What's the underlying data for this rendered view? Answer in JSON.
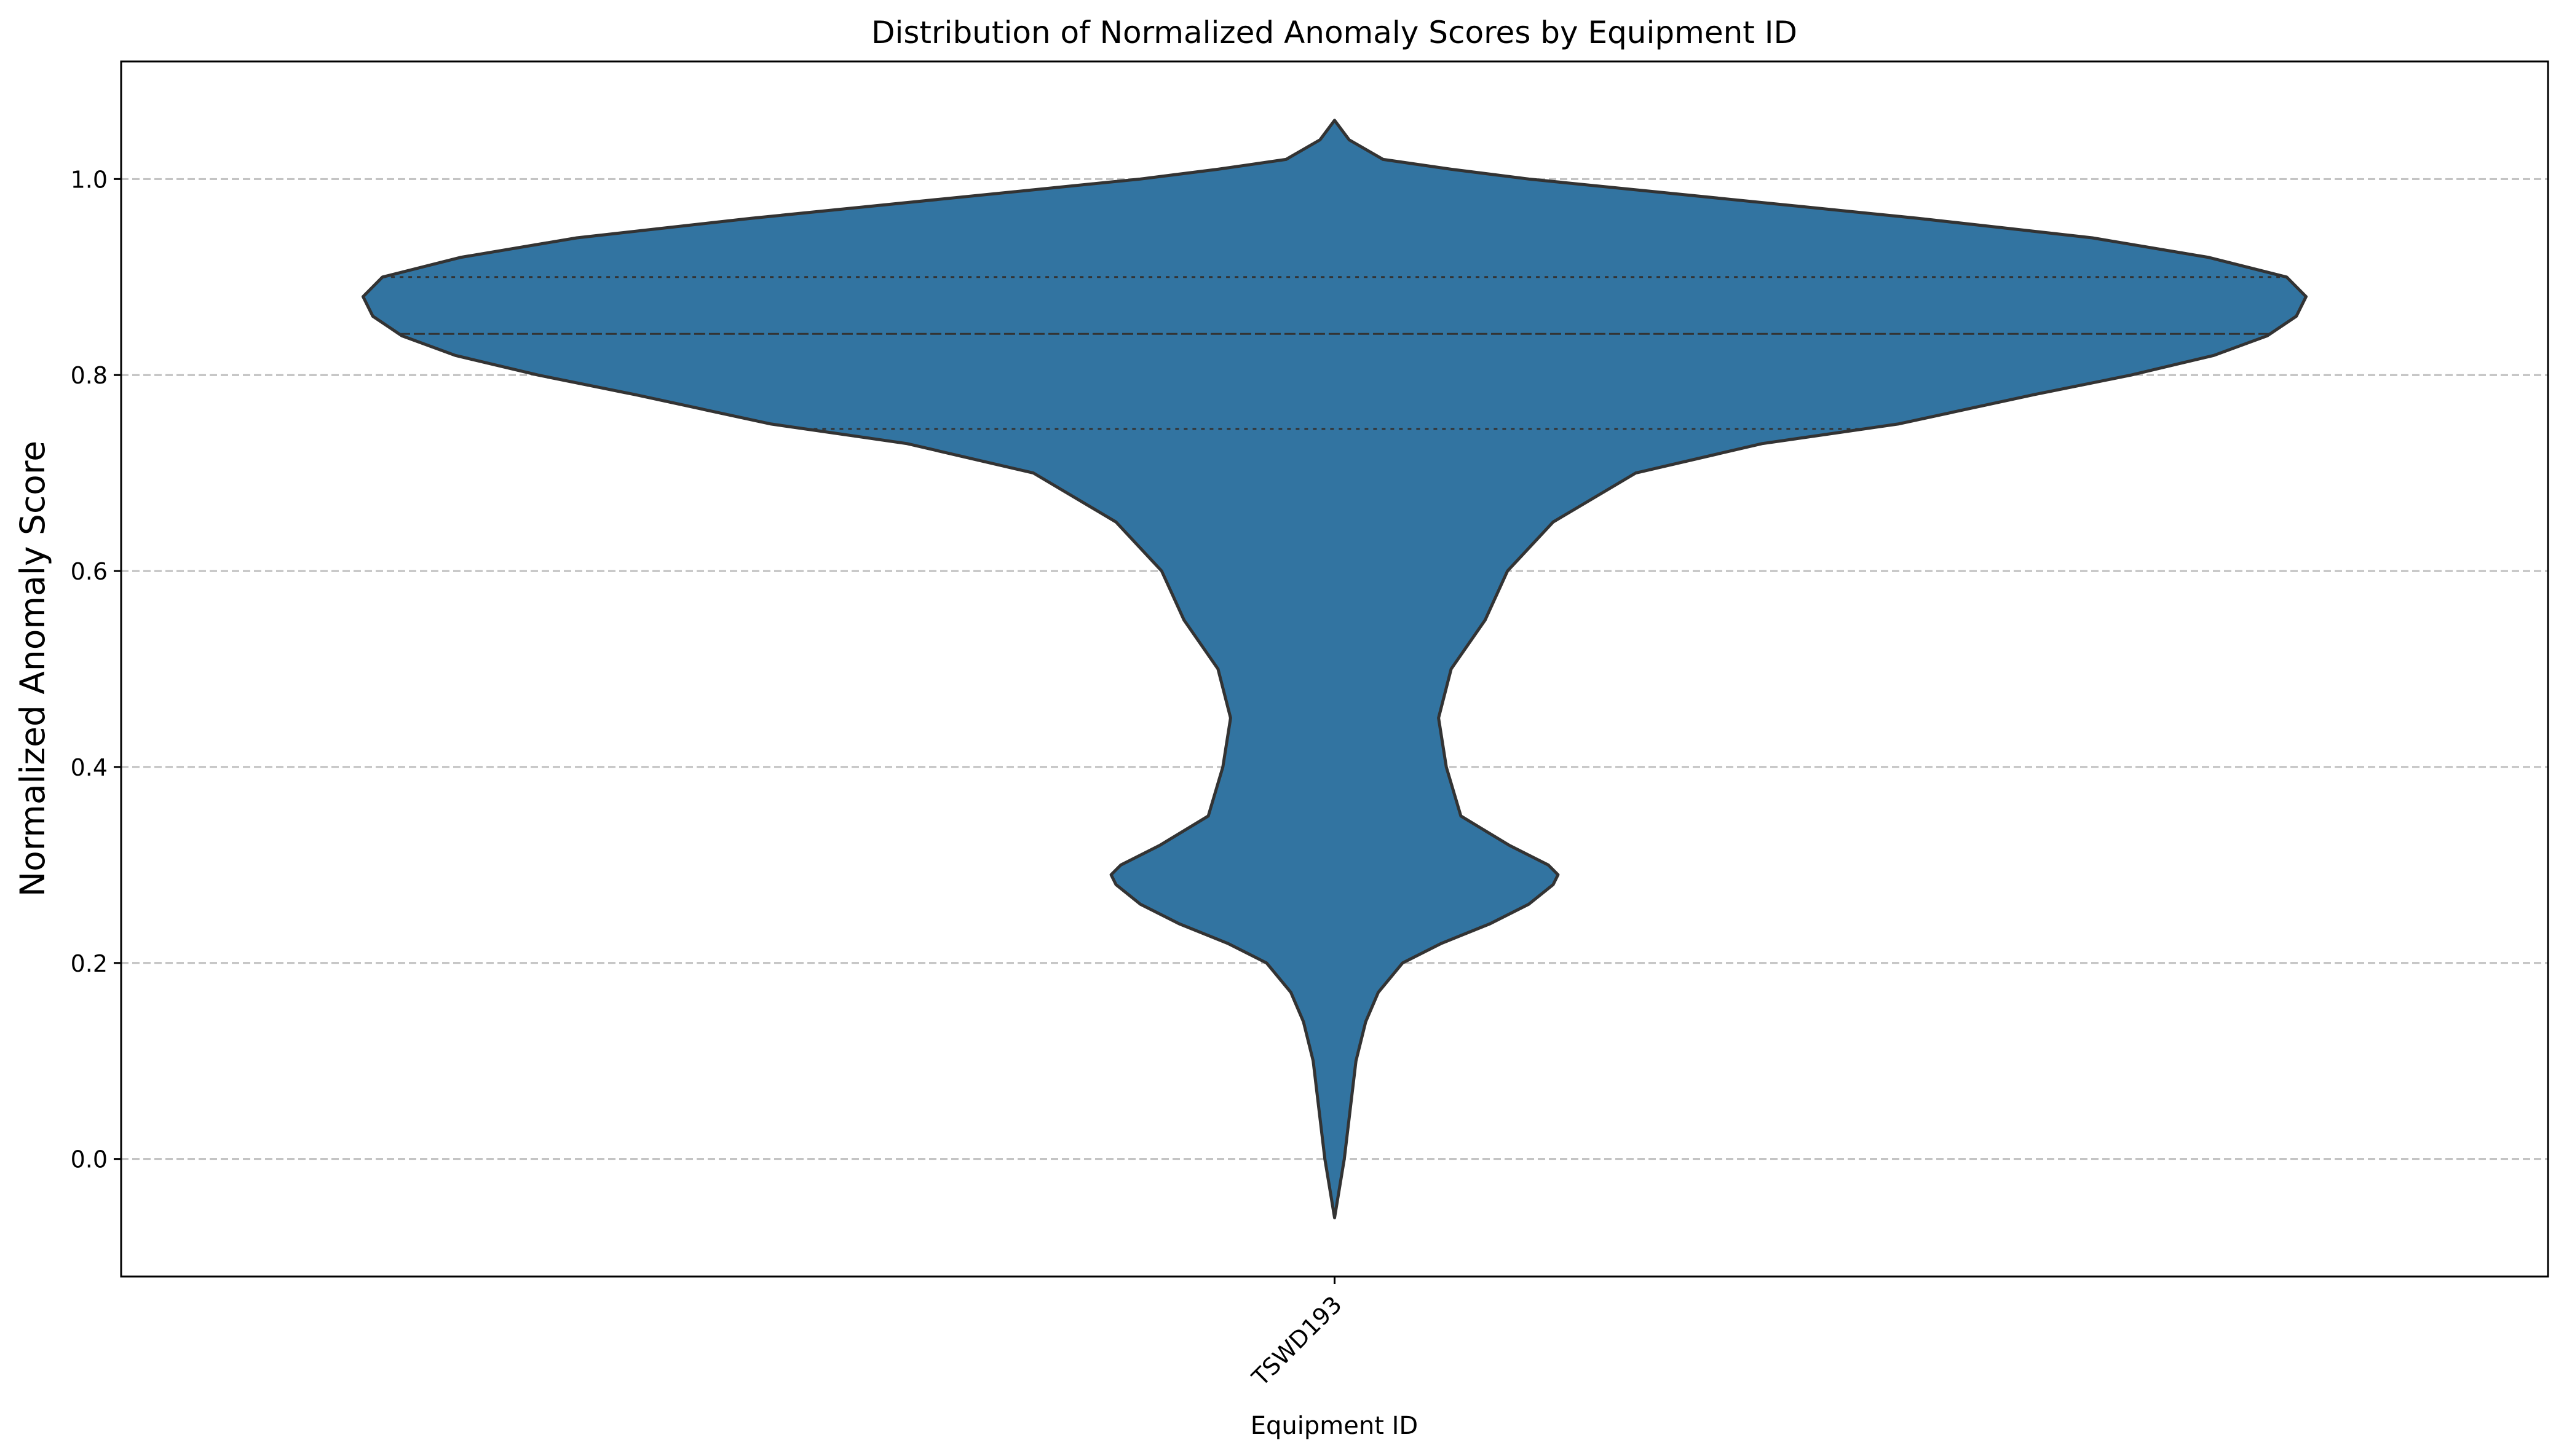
{
  "chart_data": {
    "type": "violin",
    "title": "Distribution of Normalized Anomaly Scores by Equipment ID",
    "xlabel": "Equipment ID",
    "ylabel": "Normalized Anomaly Score",
    "categories": [
      "TSWD193"
    ],
    "ylim": [
      -0.12,
      1.12
    ],
    "yticks": [
      0.0,
      0.2,
      0.4,
      0.6,
      0.8,
      1.0
    ],
    "ytick_labels": [
      "0.0",
      "0.2",
      "0.4",
      "0.6",
      "0.8",
      "1.0"
    ],
    "grid": {
      "axis": "y",
      "style": "dashed"
    },
    "legend": "none",
    "series": [
      {
        "category": "TSWD193",
        "color": "#3274a1",
        "edge_color": "#333333",
        "min": -0.06,
        "max": 1.06,
        "quartiles": {
          "q1": 0.745,
          "median": 0.842,
          "q3": 0.9
        },
        "density_profile": [
          [
            -0.06,
            0.0
          ],
          [
            0.0,
            0.01
          ],
          [
            0.05,
            0.016
          ],
          [
            0.1,
            0.022
          ],
          [
            0.14,
            0.032
          ],
          [
            0.17,
            0.045
          ],
          [
            0.2,
            0.07
          ],
          [
            0.22,
            0.11
          ],
          [
            0.24,
            0.16
          ],
          [
            0.26,
            0.2
          ],
          [
            0.28,
            0.225
          ],
          [
            0.29,
            0.23
          ],
          [
            0.3,
            0.22
          ],
          [
            0.32,
            0.18
          ],
          [
            0.35,
            0.13
          ],
          [
            0.4,
            0.115
          ],
          [
            0.45,
            0.107
          ],
          [
            0.5,
            0.12
          ],
          [
            0.55,
            0.155
          ],
          [
            0.6,
            0.178
          ],
          [
            0.65,
            0.225
          ],
          [
            0.7,
            0.31
          ],
          [
            0.73,
            0.44
          ],
          [
            0.75,
            0.58
          ],
          [
            0.78,
            0.72
          ],
          [
            0.8,
            0.82
          ],
          [
            0.82,
            0.905
          ],
          [
            0.84,
            0.96
          ],
          [
            0.86,
            0.99
          ],
          [
            0.88,
            1.0
          ],
          [
            0.9,
            0.98
          ],
          [
            0.92,
            0.9
          ],
          [
            0.94,
            0.78
          ],
          [
            0.96,
            0.6
          ],
          [
            0.98,
            0.4
          ],
          [
            1.0,
            0.2
          ],
          [
            1.01,
            0.12
          ],
          [
            1.02,
            0.05
          ],
          [
            1.04,
            0.015
          ],
          [
            1.06,
            0.0
          ]
        ]
      }
    ]
  }
}
